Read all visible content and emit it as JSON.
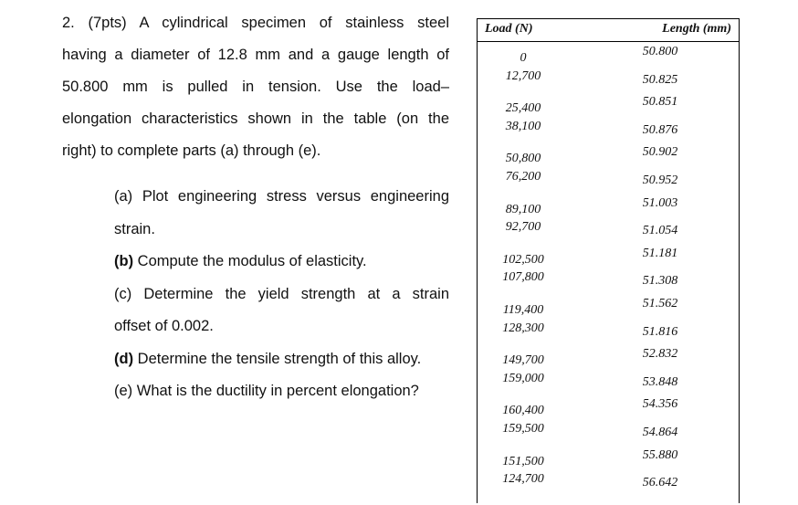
{
  "problem": {
    "lines": [
      "2. (7pts) A cylindrical specimen of stainless steel",
      "having a diameter of 12.8 mm and a gauge length of",
      "50.800 mm is pulled in tension. Use the load–",
      "elongation characteristics shown in the table (on the",
      "right) to complete parts (a) through (e)."
    ],
    "parts": [
      {
        "label": "(a)",
        "text": " Plot engineering stress versus engineering"
      },
      {
        "label": "",
        "text": "strain."
      },
      {
        "label": "(b)",
        "text": " Compute the modulus of elasticity."
      },
      {
        "label": "(c)",
        "text": " Determine the yield strength at a strain"
      },
      {
        "label": "",
        "text": "offset of 0.002."
      },
      {
        "label": "(d)",
        "text": " Determine the tensile strength of this alloy."
      },
      {
        "label": "(e)",
        "text": " What is the ductility in percent elongation?"
      }
    ]
  },
  "table": {
    "headers": [
      "Load (N)",
      "Length (mm)"
    ],
    "rows": [
      [
        "0",
        "50.800"
      ],
      [
        "12,700",
        "50.825"
      ],
      [
        "25,400",
        "50.851"
      ],
      [
        "38,100",
        "50.876"
      ],
      [
        "50,800",
        "50.902"
      ],
      [
        "76,200",
        "50.952"
      ],
      [
        "89,100",
        "51.003"
      ],
      [
        "92,700",
        "51.054"
      ],
      [
        "102,500",
        "51.181"
      ],
      [
        "107,800",
        "51.308"
      ],
      [
        "119,400",
        "51.562"
      ],
      [
        "128,300",
        "51.816"
      ],
      [
        "149,700",
        "52.832"
      ],
      [
        "159,000",
        "53.848"
      ],
      [
        "160,400",
        "54.356"
      ],
      [
        "159,500",
        "54.864"
      ],
      [
        "151,500",
        "55.880"
      ],
      [
        "124,700",
        "56.642"
      ]
    ]
  }
}
